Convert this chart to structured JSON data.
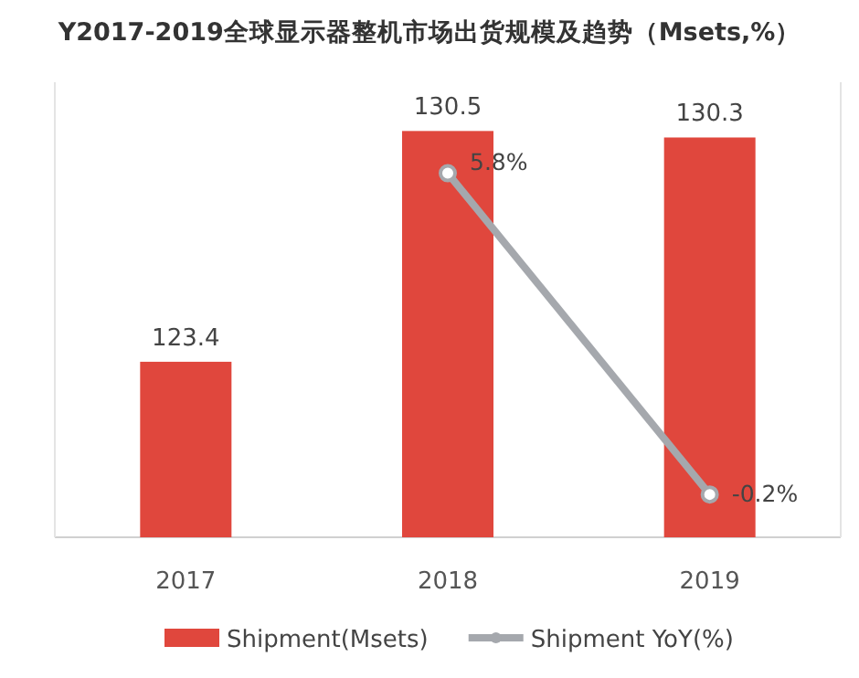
{
  "chart_data": {
    "type": "bar",
    "title": "Y2017-2019全球显示器整机市场出货规模及趋势（Msets,%）",
    "categories": [
      "2017",
      "2018",
      "2019"
    ],
    "series": [
      {
        "name": "Shipment(Msets)",
        "color": "#e0473d",
        "values": [
          123.4,
          130.5,
          130.3
        ],
        "value_labels": [
          "123.4",
          "130.5",
          "130.3"
        ]
      },
      {
        "name": "Shipment YoY(%)",
        "type": "line",
        "axis": "y2",
        "color": "#a5a8ad",
        "marker": "circle",
        "values": [
          null,
          5.8,
          -0.2
        ],
        "value_labels": [
          null,
          "5.8%",
          "-0.2%"
        ]
      }
    ],
    "ylim": [
      118,
      132
    ],
    "y2lim": [
      -1,
      7.5
    ],
    "legend": "bottom",
    "tick_labels": "x"
  }
}
